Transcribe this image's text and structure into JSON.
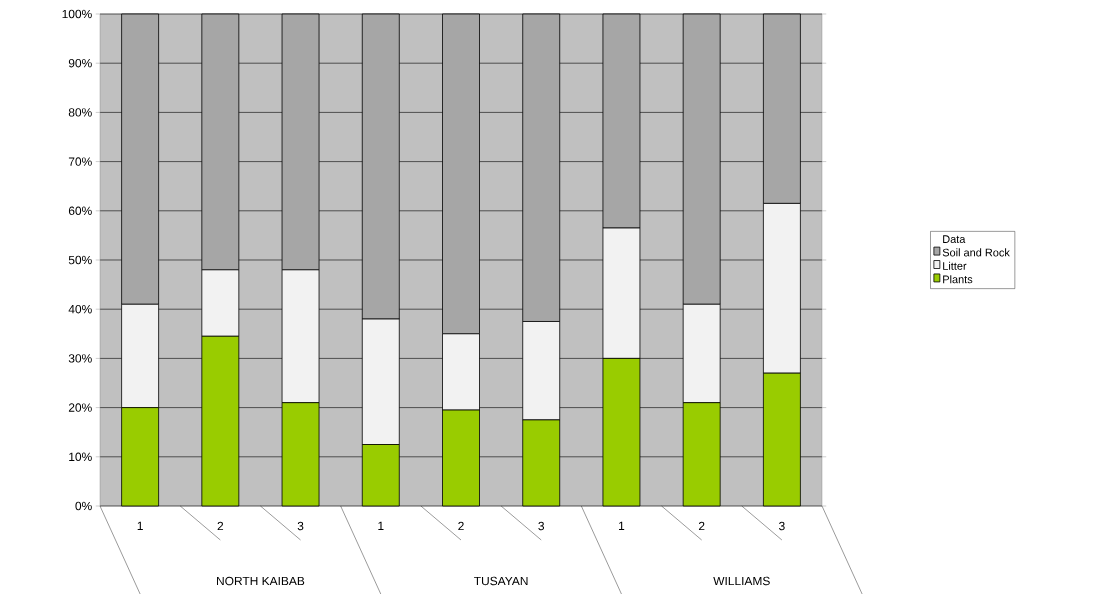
{
  "chart_data": {
    "type": "bar",
    "stacked": true,
    "categories": [
      "1",
      "2",
      "3",
      "1",
      "2",
      "3",
      "1",
      "2",
      "3"
    ],
    "series": [
      {
        "name": "Plants",
        "color": "#99cc00",
        "values": [
          20,
          34.5,
          21,
          12.5,
          19.5,
          17.5,
          30,
          21,
          27
        ]
      },
      {
        "name": "Litter",
        "color": "#f2f2f2",
        "values": [
          21,
          13.5,
          27,
          25.5,
          15.5,
          20,
          26.5,
          20,
          34.5
        ]
      },
      {
        "name": "Soil and Rock",
        "color": "#a6a6a6",
        "values": [
          59,
          52,
          52,
          62,
          65,
          62.5,
          43.5,
          59,
          38.5
        ]
      }
    ],
    "annotations": [
      "NORTH KAIBAB",
      "TUSAYAN",
      "WILLIAMS"
    ],
    "legend_title": "Data",
    "ylim": [
      0,
      100
    ],
    "yticks": [
      {
        "value": 0,
        "label": "0%"
      },
      {
        "value": 10,
        "label": "10%"
      },
      {
        "value": 20,
        "label": "20%"
      },
      {
        "value": 30,
        "label": "30%"
      },
      {
        "value": 40,
        "label": "40%"
      },
      {
        "value": 50,
        "label": "50%"
      },
      {
        "value": 60,
        "label": "60%"
      },
      {
        "value": 70,
        "label": "70%"
      },
      {
        "value": 80,
        "label": "80%"
      },
      {
        "value": 90,
        "label": "90%"
      },
      {
        "value": 100,
        "label": "100%"
      }
    ],
    "grid": "y",
    "legend": "right"
  }
}
